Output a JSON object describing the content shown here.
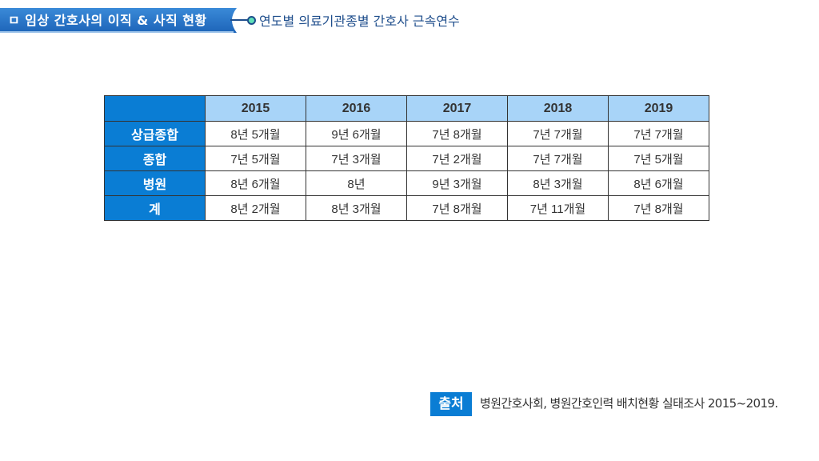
{
  "header": {
    "title": "ㅁ 임상 간호사의 이직 & 사직 현황",
    "subtitle": "연도별 의료기관종별 간호사 근속연수"
  },
  "table": {
    "columns": [
      "2015",
      "2016",
      "2017",
      "2018",
      "2019"
    ],
    "rows": [
      {
        "label": "상급종합",
        "values": [
          "8년 5개월",
          "9년 6개월",
          "7년 8개월",
          "7년 7개월",
          "7년 7개월"
        ]
      },
      {
        "label": "종합",
        "values": [
          "7년 5개월",
          "7년 3개월",
          "7년 2개월",
          "7년 7개월",
          "7년 5개월"
        ]
      },
      {
        "label": "병원",
        "values": [
          "8년 6개월",
          "8년",
          "9년 3개월",
          "8년 3개월",
          "8년 6개월"
        ]
      },
      {
        "label": "계",
        "values": [
          "8년 2개월",
          "8년 3개월",
          "7년 8개월",
          "7년 11개월",
          "7년 8개월"
        ]
      }
    ]
  },
  "source": {
    "label": "출처",
    "text": "병원간호사회, 병원간호인력 배치현황 실태조사 2015~2019."
  },
  "colors": {
    "accent": "#0a7dd4",
    "header_fill": "#a8d4f8",
    "title_blue": "#1f4e8c"
  }
}
